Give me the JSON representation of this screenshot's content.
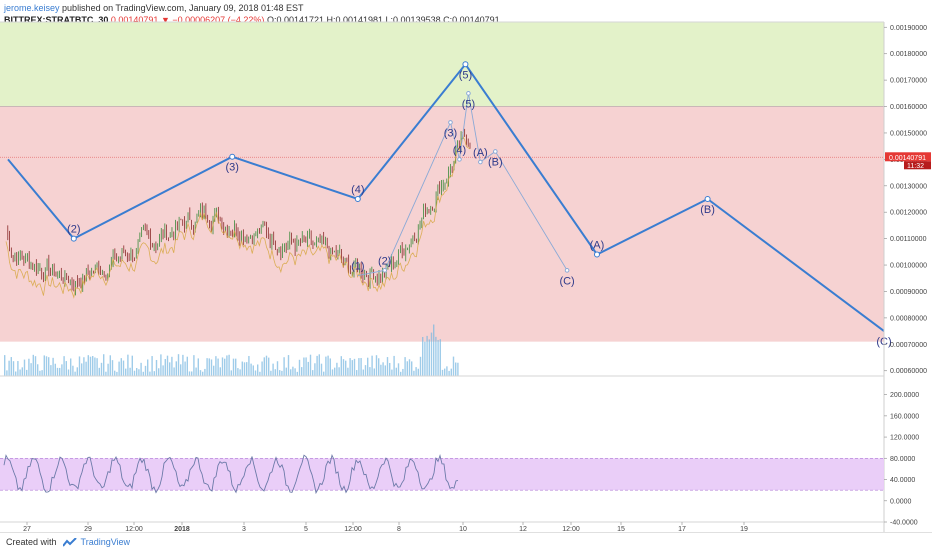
{
  "header": {
    "author": "jerome.keisey",
    "published": "published on TradingView.com, January 09, 2018 01:48 EST",
    "symbol": "BITTREX:STRATBTC, 30",
    "last_price": "0.00140791",
    "change": "▼ −0.00006207 (−4.22%)",
    "ohlc": "O:0.00141721 H:0.00141981 L:0.00139538 C:0.00140791"
  },
  "footer": {
    "created_with": "Created with",
    "brand": "TradingView"
  },
  "colors": {
    "wave_line": "#3a7dd1",
    "green_zone": "#e3f2c9",
    "red_zone": "#f6d2d2",
    "rsi_band": "#e8c9f7",
    "price_badge": "#e53935"
  },
  "chart_data": [
    {
      "type": "line",
      "title": "BITTREX:STRATBTC, 30",
      "y_axis_side": "right",
      "ylim": [
        0.00058,
        0.00192
      ],
      "y_ticks": [
        "0.00190000",
        "0.00180000",
        "0.00170000",
        "0.00160000",
        "0.00150000",
        "0.00140000",
        "0.00130000",
        "0.00120000",
        "0.00110000",
        "0.00100000",
        "0.00090000",
        "0.00080000",
        "0.00070000",
        "0.00060000"
      ],
      "x_ticks": [
        "27",
        "29",
        "12:00",
        "2018",
        "3",
        "5",
        "12:00",
        "8",
        "10",
        "12",
        "12:00",
        "15",
        "17",
        "19"
      ],
      "zones": [
        {
          "name": "green",
          "from": 0.0016,
          "to": 0.00192
        },
        {
          "name": "red",
          "from": 0.00071,
          "to": 0.0016
        }
      ],
      "current_price": {
        "price": "0.00140791",
        "countdown": "11:32"
      },
      "series": [
        {
          "points": [
            {
              "x": 0.0,
              "y": 0.0014,
              "label": ""
            },
            {
              "x": 2.2,
              "y": 0.0011,
              "label": "(2)"
            },
            {
              "x": 7.5,
              "y": 0.00141,
              "label": "(3)"
            },
            {
              "x": 11.7,
              "y": 0.00125,
              "label": "(4)"
            },
            {
              "x": 15.3,
              "y": 0.00176,
              "label": "(5)"
            },
            {
              "x": 19.7,
              "y": 0.00104,
              "label": "(A)"
            },
            {
              "x": 23.4,
              "y": 0.00125,
              "label": "(B)"
            },
            {
              "x": 29.3,
              "y": 0.00075,
              "label": "(C)"
            }
          ]
        },
        {
          "points": [
            {
              "x": 11.7,
              "y": 0.00096,
              "label": "(1)"
            },
            {
              "x": 12.6,
              "y": 0.00098,
              "label": "(2)"
            },
            {
              "x": 14.8,
              "y": 0.00154,
              "label": "(3)"
            },
            {
              "x": 15.1,
              "y": 0.0014,
              "label": "(4)"
            },
            {
              "x": 15.4,
              "y": 0.00165,
              "label": "(5)"
            },
            {
              "x": 15.8,
              "y": 0.00139,
              "label": "(A)"
            },
            {
              "x": 16.3,
              "y": 0.00143,
              "label": "(B)"
            },
            {
              "x": 18.7,
              "y": 0.00098,
              "label": "(C)"
            }
          ]
        }
      ]
    },
    {
      "type": "line",
      "ylim": [
        -40,
        220
      ],
      "y_ticks": [
        "200.0000",
        "160.0000",
        "120.0000",
        "80.0000",
        "40.0000",
        "0.0000",
        "-40.0000"
      ],
      "band": [
        20,
        80
      ]
    }
  ]
}
